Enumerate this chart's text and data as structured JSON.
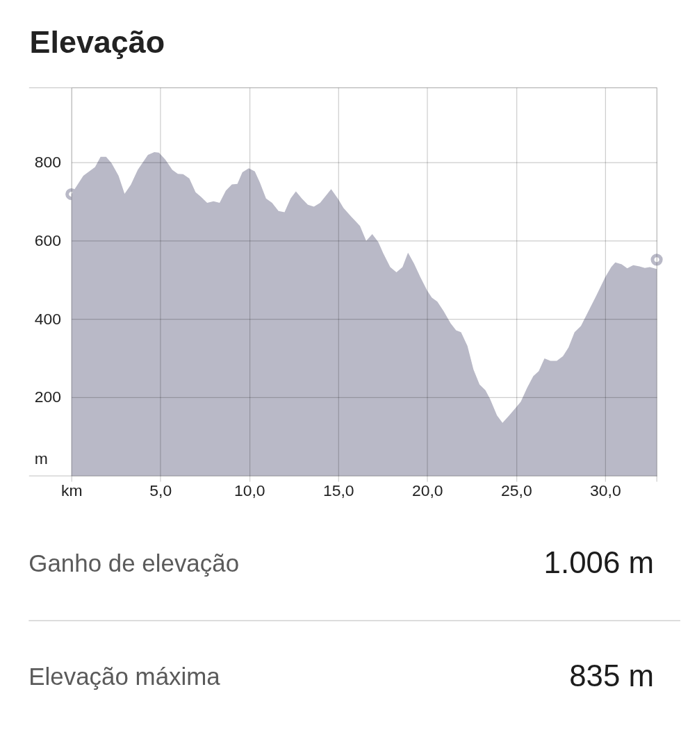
{
  "chart_data": {
    "type": "area",
    "title": "Elevação",
    "ylabel": "m",
    "x": [
      0,
      0.67,
      1.33,
      1.64,
      1.95,
      2.26,
      2.65,
      2.99,
      3.34,
      3.73,
      4.3,
      4.66,
      4.92,
      5.28,
      5.67,
      5.98,
      6.28,
      6.63,
      6.98,
      7.29,
      7.63,
      7.99,
      8.33,
      8.68,
      9.02,
      9.33,
      9.61,
      9.97,
      10.31,
      10.59,
      10.94,
      11.28,
      11.64,
      11.98,
      12.32,
      12.62,
      12.95,
      13.29,
      13.63,
      13.98,
      14.6,
      15.0,
      15.29,
      15.68,
      16.22,
      16.57,
      16.91,
      17.25,
      17.53,
      17.92,
      18.27,
      18.61,
      18.92,
      19.26,
      19.61,
      20.0,
      20.26,
      20.57,
      20.93,
      21.31,
      21.62,
      21.9,
      22.26,
      22.6,
      22.94,
      23.27,
      23.53,
      23.92,
      24.23,
      24.61,
      25.0,
      25.26,
      25.62,
      25.96,
      26.27,
      26.59,
      26.93,
      27.28,
      27.63,
      27.94,
      28.28,
      28.64,
      29.02,
      29.49,
      30.0,
      30.34,
      30.57,
      30.93,
      31.24,
      31.58,
      31.93,
      32.23,
      32.51,
      32.9
    ],
    "series": [
      {
        "color": "#b9b9c7",
        "values": [
          718,
          765,
          787,
          813,
          813,
          797,
          765,
          719,
          742,
          780,
          818,
          825,
          824,
          806,
          780,
          770,
          769,
          758,
          723,
          711,
          696,
          700,
          696,
          727,
          743,
          744,
          774,
          784,
          776,
          748,
          707,
          696,
          675,
          672,
          707,
          725,
          707,
          691,
          686,
          696,
          731,
          705,
          683,
          663,
          637,
          599,
          616,
          596,
          567,
          532,
          519,
          532,
          569,
          541,
          507,
          472,
          454,
          444,
          419,
          389,
          371,
          366,
          331,
          271,
          233,
          218,
          196,
          154,
          135,
          154,
          175,
          189,
          225,
          254,
          267,
          299,
          293,
          293,
          305,
          327,
          366,
          382,
          416,
          458,
          506,
          532,
          544,
          539,
          529,
          537,
          534,
          530,
          532,
          527
        ]
      },
      {
        "type": "scatter",
        "marker": "circle",
        "color": "#b9b9c7",
        "x": [
          0,
          32.9
        ],
        "values": [
          718,
          551
        ]
      }
    ],
    "xlim": [
      0,
      32.9
    ],
    "xticks": [
      {
        "value": 0,
        "label": "km"
      },
      {
        "value": 5,
        "label": "5,0"
      },
      {
        "value": 10,
        "label": "10,0"
      },
      {
        "value": 15,
        "label": "15,0"
      },
      {
        "value": 20,
        "label": "20,0"
      },
      {
        "value": 25,
        "label": "25,0"
      },
      {
        "value": 30,
        "label": "30,0"
      },
      {
        "value": 32.9,
        "label": null
      }
    ],
    "ylim": [
      0,
      990
    ],
    "yticks": [
      {
        "value": 0,
        "label": null
      },
      200,
      400,
      600,
      800,
      {
        "value": 990,
        "label": null
      }
    ],
    "grid": true,
    "annotations": [
      "Ganho de elevação",
      "1.006 m",
      "Elevação máxima",
      "835 m"
    ]
  }
}
